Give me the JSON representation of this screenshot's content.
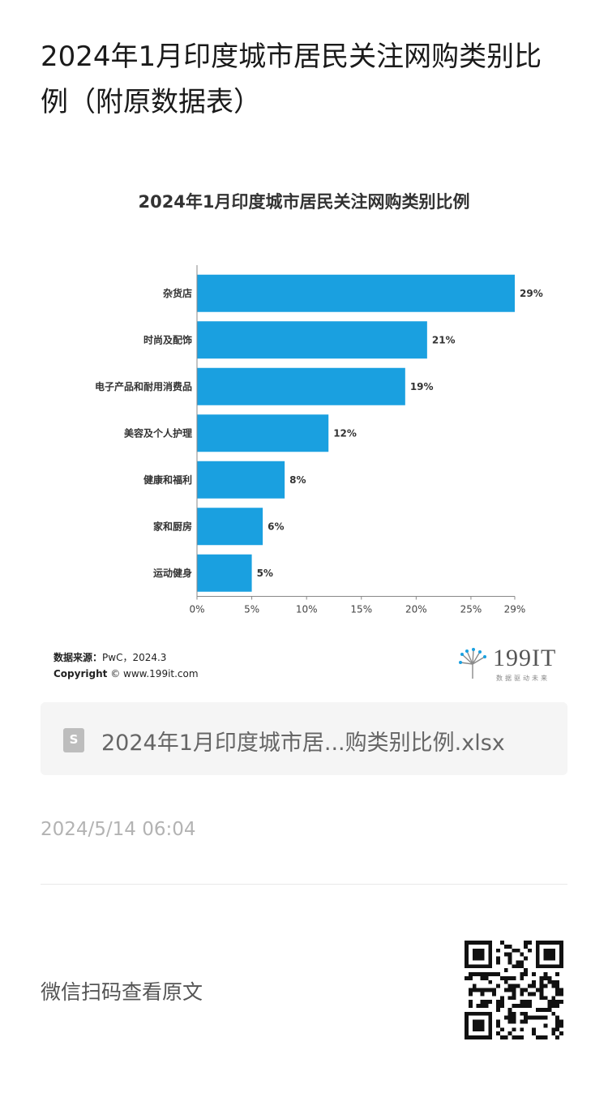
{
  "article": {
    "title": "2024年1月印度城市居民关注网购类别比例（附原数据表）",
    "timestamp": "2024/5/14 06:04",
    "qr_hint": "微信扫码查看原文"
  },
  "attachment": {
    "file_name": "2024年1月印度城市居...购类别比例.xlsx",
    "icon_letter": "S"
  },
  "branding": {
    "logo_text": "199IT",
    "logo_sub": "数据驱动未来"
  },
  "source": {
    "line1_label": "数据来源：",
    "line1_value": "PwC，2024.3",
    "line2_label": "Copyright",
    "line2_value": "© www.199it.com"
  },
  "chart_data": {
    "type": "bar",
    "orientation": "horizontal",
    "title": "2024年1月印度城市居民关注网购类别比例",
    "categories": [
      "杂货店",
      "时尚及配饰",
      "电子产品和耐用消费品",
      "美容及个人护理",
      "健康和福利",
      "家和厨房",
      "运动健身"
    ],
    "values": [
      29,
      21,
      19,
      12,
      8,
      6,
      5
    ],
    "value_labels": [
      "29%",
      "21%",
      "19%",
      "12%",
      "8%",
      "6%",
      "5%"
    ],
    "xticks": [
      "0%",
      "5%",
      "10%",
      "15%",
      "20%",
      "25%",
      "29%"
    ],
    "xtick_values": [
      0,
      5,
      10,
      15,
      20,
      25,
      29
    ],
    "xlim": [
      0,
      29
    ],
    "xlabel": "",
    "ylabel": "",
    "bar_color": "#1aa0e0",
    "grid": false
  }
}
